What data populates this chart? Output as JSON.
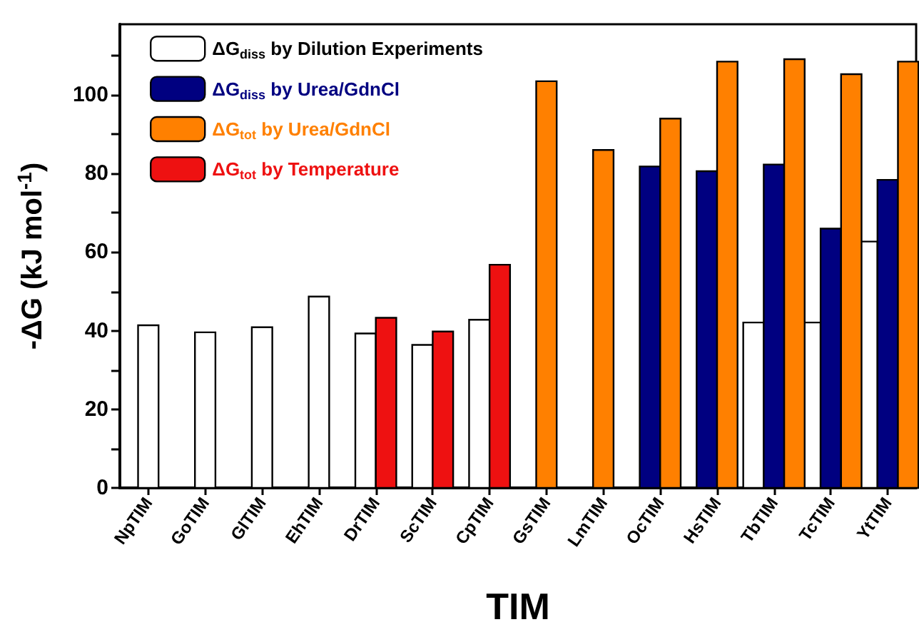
{
  "chart_data": {
    "type": "bar",
    "xlabel": "TIM",
    "ylabel": "-ΔG (kJ mol$^{-1}$)",
    "categories": [
      "NpTIM",
      "GoTIM",
      "GlTIM",
      "EhTIM",
      "DrTIM",
      "ScTIM",
      "CpTIM",
      "GsTIM",
      "LmTIM",
      "OcTIM",
      "HsTIM",
      "TbTIM",
      "TcTIM",
      "YtTIM"
    ],
    "series": [
      {
        "name": "ΔG$_{diss}$ by Dilution Experiments",
        "color": "#ffffff",
        "values": [
          41.4,
          39.6,
          40.9,
          48.7,
          39.3,
          36.4,
          42.8,
          null,
          null,
          null,
          null,
          42.1,
          42.1,
          62.7
        ]
      },
      {
        "name": "ΔG$_{diss}$ by Urea/GdnCl",
        "color": "#000080",
        "values": [
          null,
          null,
          null,
          null,
          null,
          null,
          null,
          null,
          null,
          81.8,
          80.6,
          82.3,
          66.0,
          78.4
        ]
      },
      {
        "name": "ΔG$_{tot}$ by Urea/GdnCl",
        "color": "#ff8000",
        "values": [
          null,
          null,
          null,
          null,
          null,
          null,
          null,
          103.5,
          86.0,
          94.0,
          108.5,
          109.1,
          105.3,
          108.5
        ]
      },
      {
        "name": "ΔG$_{tot}$ by Temperature",
        "color": "#ee1111",
        "values": [
          null,
          null,
          null,
          null,
          43.3,
          39.8,
          56.8,
          null,
          null,
          null,
          null,
          null,
          null,
          null
        ]
      }
    ],
    "ylim": [
      0,
      118
    ],
    "yticks": [
      0,
      {
        "value": 10,
        "label": null
      },
      20,
      {
        "value": 30,
        "label": null
      },
      40,
      {
        "value": 50,
        "label": null
      },
      60,
      {
        "value": 70,
        "label": null
      },
      80,
      {
        "value": 90,
        "label": null
      },
      100,
      {
        "value": 110,
        "label": null
      }
    ],
    "grid": false,
    "legend": "top left"
  }
}
